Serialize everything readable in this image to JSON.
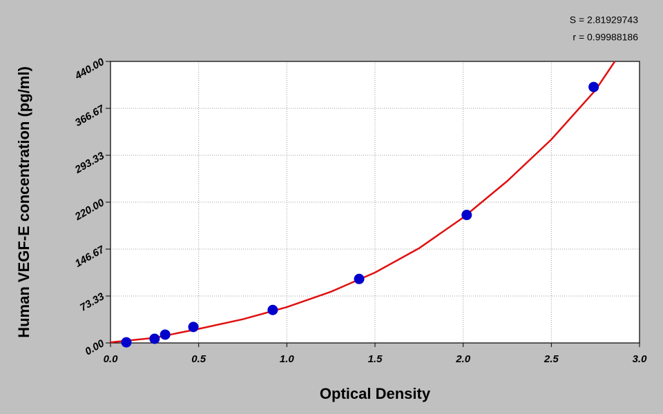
{
  "chart_data": {
    "type": "scatter",
    "annotations": [
      "S = 2.81929743",
      "r = 0.99988186"
    ],
    "x_label": "Optical Density",
    "y_label": "Human VEGF-E concentration (pg/ml)",
    "xlim": [
      0,
      3
    ],
    "ylim": [
      0,
      440
    ],
    "xticks": [
      {
        "value": 0,
        "label": "0.0"
      },
      0.5,
      {
        "value": 1,
        "label": "1.0"
      },
      1.5,
      {
        "value": 2,
        "label": "2.0"
      },
      2.5,
      {
        "value": 3,
        "label": "3.0"
      }
    ],
    "yticks": [
      {
        "value": 0,
        "label": "0.00"
      },
      73.33,
      146.67,
      {
        "value": 220,
        "label": "220.00"
      },
      293.33,
      366.67,
      {
        "value": 440,
        "label": "440.00"
      }
    ],
    "grid": true,
    "points": {
      "color": "#0000cc",
      "x": [
        0.09,
        0.25,
        0.31,
        0.47,
        0.92,
        1.41,
        2.02,
        2.74
      ],
      "values": [
        1,
        6.5,
        13,
        25,
        51.5,
        100,
        200,
        400
      ]
    },
    "curve": {
      "color": "#e01010",
      "x": [
        0,
        0.25,
        0.5,
        0.75,
        1.0,
        1.25,
        1.5,
        1.75,
        2.0,
        2.25,
        2.5,
        2.75,
        2.86
      ],
      "values": [
        1,
        8,
        22,
        37,
        56,
        80,
        110,
        148,
        196,
        253,
        318,
        395,
        440
      ]
    }
  }
}
